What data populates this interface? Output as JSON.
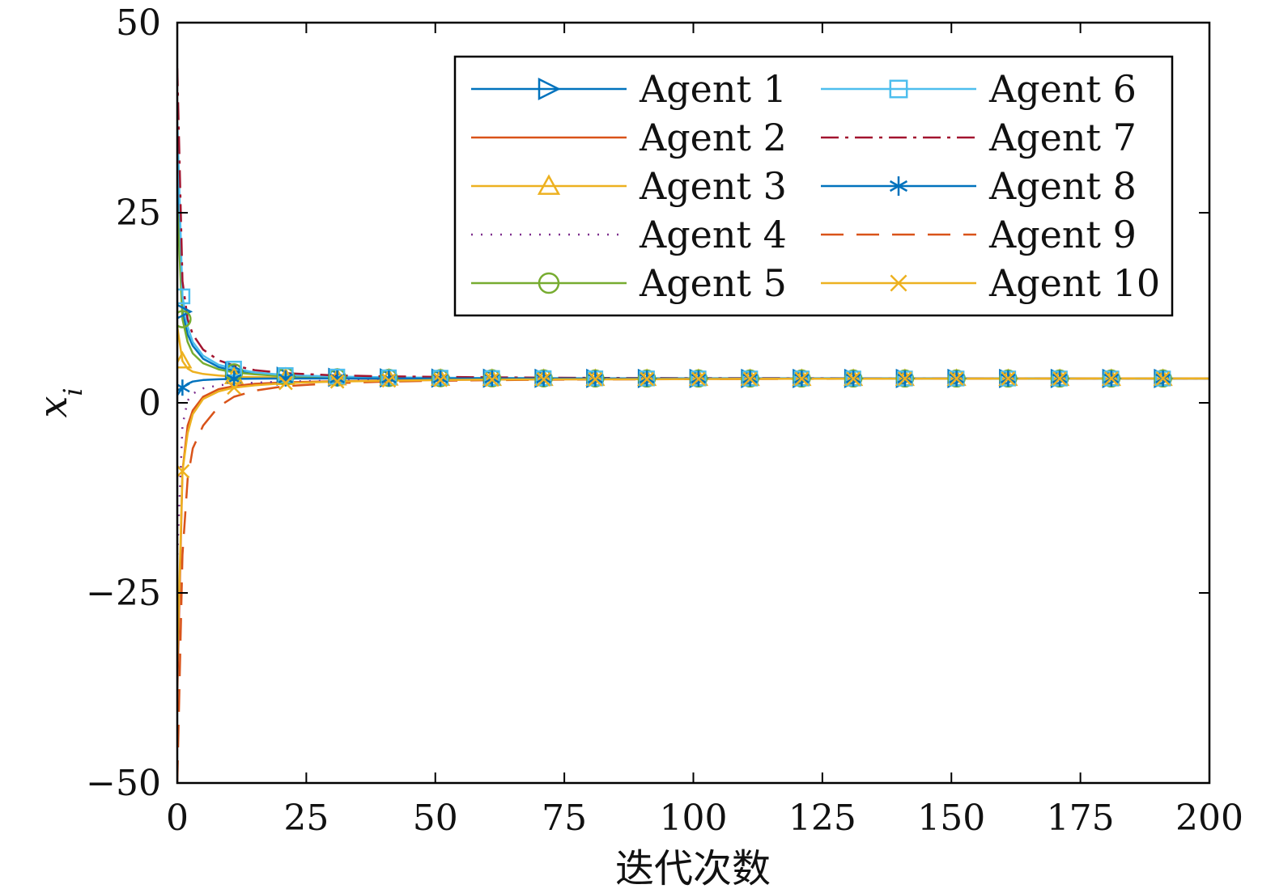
{
  "chart_data": {
    "type": "line",
    "title": "",
    "xlabel": "迭代次数",
    "ylabel": "x_i",
    "xlim": [
      0,
      200
    ],
    "ylim": [
      -50,
      50
    ],
    "xticks": [
      0,
      25,
      50,
      75,
      100,
      125,
      150,
      175,
      200
    ],
    "yticks": [
      -50,
      -25,
      0,
      25,
      50
    ],
    "ytick_labels": [
      "−50",
      "−25",
      "0",
      "25",
      "50"
    ],
    "grid": false,
    "legend": {
      "placement": "top-right",
      "columns": 2
    },
    "consensus_value": 3.2,
    "x": [
      0,
      1,
      2,
      3,
      5,
      8,
      11,
      15,
      21,
      31,
      41,
      51,
      61,
      71,
      81,
      91,
      101,
      111,
      121,
      131,
      141,
      151,
      161,
      171,
      181,
      191,
      200
    ],
    "series": [
      {
        "name": "Agent 1",
        "color": "#0072BD",
        "dash": "",
        "marker": "triangle-right",
        "values": [
          30,
          12,
          9,
          7.5,
          5.8,
          4.7,
          4.2,
          3.8,
          3.5,
          3.35,
          3.28,
          3.25,
          3.23,
          3.22,
          3.21,
          3.2,
          3.2,
          3.2,
          3.2,
          3.2,
          3.2,
          3.2,
          3.2,
          3.2,
          3.2,
          3.2,
          3.2
        ]
      },
      {
        "name": "Agent 2",
        "color": "#D95319",
        "dash": "",
        "marker": "none",
        "values": [
          -38,
          -9,
          -3,
          -1,
          0.8,
          1.8,
          2.2,
          2.5,
          2.7,
          2.85,
          2.95,
          3.0,
          3.05,
          3.08,
          3.1,
          3.12,
          3.14,
          3.15,
          3.16,
          3.17,
          3.18,
          3.18,
          3.19,
          3.19,
          3.2,
          3.2,
          3.2
        ]
      },
      {
        "name": "Agent 3",
        "color": "#EDB120",
        "dash": "",
        "marker": "triangle-up",
        "values": [
          10,
          5.5,
          4.5,
          4.1,
          3.8,
          3.6,
          3.45,
          3.38,
          3.32,
          3.27,
          3.24,
          3.22,
          3.21,
          3.2,
          3.2,
          3.2,
          3.2,
          3.2,
          3.2,
          3.2,
          3.2,
          3.2,
          3.2,
          3.2,
          3.2,
          3.2,
          3.2
        ]
      },
      {
        "name": "Agent 4",
        "color": "#7E2F8E",
        "dash": "2 10",
        "marker": "none",
        "values": [
          -20,
          -3,
          0.3,
          1.2,
          1.9,
          2.3,
          2.5,
          2.65,
          2.8,
          2.92,
          3.0,
          3.05,
          3.08,
          3.1,
          3.12,
          3.14,
          3.15,
          3.16,
          3.17,
          3.18,
          3.18,
          3.19,
          3.19,
          3.2,
          3.2,
          3.2,
          3.2
        ]
      },
      {
        "name": "Agent 5",
        "color": "#77AC30",
        "dash": "",
        "marker": "circle",
        "values": [
          26,
          11,
          8,
          6.5,
          5.2,
          4.4,
          4.0,
          3.75,
          3.5,
          3.35,
          3.28,
          3.25,
          3.23,
          3.22,
          3.21,
          3.2,
          3.2,
          3.2,
          3.2,
          3.2,
          3.2,
          3.2,
          3.2,
          3.2,
          3.2,
          3.2,
          3.2
        ]
      },
      {
        "name": "Agent 6",
        "color": "#4DBEEE",
        "dash": "",
        "marker": "square",
        "values": [
          37,
          14,
          10,
          8,
          6.2,
          5.0,
          4.5,
          4.0,
          3.65,
          3.45,
          3.35,
          3.3,
          3.26,
          3.24,
          3.22,
          3.21,
          3.21,
          3.2,
          3.2,
          3.2,
          3.2,
          3.2,
          3.2,
          3.2,
          3.2,
          3.2,
          3.2
        ]
      },
      {
        "name": "Agent 7",
        "color": "#A2142F",
        "dash": "22 8 4 8",
        "marker": "none",
        "values": [
          44,
          16,
          11,
          9,
          7,
          5.6,
          4.9,
          4.3,
          3.9,
          3.6,
          3.48,
          3.4,
          3.35,
          3.31,
          3.28,
          3.26,
          3.25,
          3.24,
          3.23,
          3.22,
          3.22,
          3.21,
          3.21,
          3.21,
          3.2,
          3.2,
          3.2
        ]
      },
      {
        "name": "Agent 8",
        "color": "#0072BD",
        "dash": "",
        "marker": "asterisk",
        "values": [
          1,
          2,
          2.5,
          2.8,
          3.0,
          3.1,
          3.15,
          3.18,
          3.2,
          3.2,
          3.2,
          3.2,
          3.2,
          3.2,
          3.2,
          3.2,
          3.2,
          3.2,
          3.2,
          3.2,
          3.2,
          3.2,
          3.2,
          3.2,
          3.2,
          3.2,
          3.2
        ]
      },
      {
        "name": "Agent 9",
        "color": "#D95319",
        "dash": "28 16",
        "marker": "none",
        "values": [
          -50,
          -20,
          -10,
          -6,
          -3,
          -0.5,
          0.8,
          1.6,
          2.2,
          2.6,
          2.8,
          2.9,
          2.98,
          3.03,
          3.07,
          3.1,
          3.12,
          3.14,
          3.15,
          3.16,
          3.17,
          3.18,
          3.19,
          3.19,
          3.2,
          3.2,
          3.2
        ]
      },
      {
        "name": "Agent 10",
        "color": "#EDB120",
        "dash": "",
        "marker": "x",
        "values": [
          -34,
          -9,
          -4,
          -1.5,
          0.5,
          1.5,
          2.0,
          2.3,
          2.6,
          2.8,
          2.92,
          3.0,
          3.05,
          3.08,
          3.1,
          3.12,
          3.14,
          3.15,
          3.16,
          3.17,
          3.18,
          3.18,
          3.19,
          3.19,
          3.2,
          3.2,
          3.2
        ]
      }
    ]
  }
}
